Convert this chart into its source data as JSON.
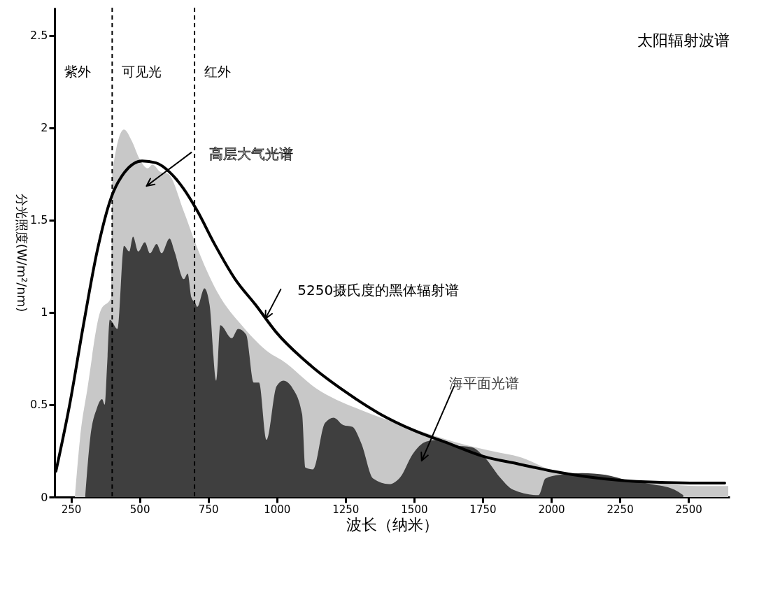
{
  "chart_data": {
    "type": "area",
    "title": "太阳辐射波谱",
    "xlabel": "波长（纳米）",
    "ylabel": "分光照度(W/m²/nm)",
    "xlim": [
      190,
      2650
    ],
    "xticks": [
      250,
      500,
      750,
      1000,
      1250,
      1500,
      1750,
      2000,
      2250,
      2500
    ],
    "ylim": [
      0,
      2.65
    ],
    "yticks": [
      0,
      0.5,
      1,
      1.5,
      2,
      2.5
    ],
    "grid": false,
    "ref_lines": [
      {
        "axis": "x",
        "value": 400,
        "line_style": "dashed",
        "color": "#000000"
      },
      {
        "axis": "x",
        "value": 700,
        "line_style": "dashed",
        "color": "#000000"
      }
    ],
    "annotations": [
      "紫外",
      "可见光",
      "红外"
    ],
    "series": [
      {
        "name": "高层大气光谱",
        "color": "#c8c8c8",
        "x": [
          264,
          283,
          310,
          358,
          396,
          401,
          443,
          471,
          500,
          529,
          547,
          576,
          604,
          660,
          707,
          783,
          878,
          974,
          1019,
          1142,
          1308,
          1476,
          1644,
          1811,
          1878,
          2030,
          2281,
          2532,
          2645
        ],
        "values": [
          0,
          0.32,
          0.59,
          1.01,
          1.08,
          1.76,
          1.99,
          1.93,
          1.83,
          1.78,
          1.8,
          1.76,
          1.75,
          1.55,
          1.36,
          1.11,
          0.92,
          0.78,
          0.74,
          0.59,
          0.47,
          0.38,
          0.3,
          0.24,
          0.22,
          0.13,
          0.09,
          0.06,
          0.06
        ]
      },
      {
        "name": "海平面光谱",
        "color": "#3f3f3f",
        "x": [
          302,
          320,
          344,
          363,
          373,
          382,
          391,
          420,
          443,
          462,
          476,
          495,
          519,
          538,
          562,
          580,
          609,
          627,
          661,
          675,
          689,
          703,
          710,
          736,
          755,
          779,
          794,
          836,
          859,
          888,
          916,
          935,
          963,
          999,
          1024,
          1057,
          1092,
          1104,
          1132,
          1175,
          1207,
          1242,
          1275,
          1308,
          1351,
          1409,
          1451,
          1494,
          1544,
          1594,
          1645,
          1710,
          1760,
          1811,
          1861,
          1954,
          1979,
          2029,
          2112,
          2198,
          2280,
          2363,
          2449,
          2481
        ],
        "values": [
          0.01,
          0.32,
          0.48,
          0.53,
          0.5,
          0.73,
          0.96,
          0.91,
          1.36,
          1.33,
          1.41,
          1.33,
          1.38,
          1.32,
          1.37,
          1.32,
          1.4,
          1.33,
          1.18,
          1.21,
          1.08,
          1.05,
          1.03,
          1.13,
          1.04,
          0.63,
          0.93,
          0.86,
          0.91,
          0.88,
          0.62,
          0.62,
          0.31,
          0.6,
          0.63,
          0.59,
          0.45,
          0.16,
          0.15,
          0.4,
          0.43,
          0.39,
          0.38,
          0.29,
          0.1,
          0.07,
          0.11,
          0.23,
          0.3,
          0.31,
          0.28,
          0.27,
          0.21,
          0.11,
          0.04,
          0.01,
          0.1,
          0.12,
          0.13,
          0.12,
          0.09,
          0.07,
          0.04,
          0.01
        ]
      },
      {
        "name": "5250摄氏度的黑体辐射谱",
        "type": "line",
        "color": "#000000",
        "x": [
          195,
          245,
          295,
          345,
          396,
          446,
          509,
          559,
          609,
          660,
          710,
          773,
          848,
          923,
          999,
          1125,
          1250,
          1376,
          1501,
          1627,
          1753,
          1878,
          2004,
          2130,
          2255,
          2381,
          2506,
          2632
        ],
        "values": [
          0.14,
          0.5,
          0.93,
          1.33,
          1.62,
          1.76,
          1.82,
          1.81,
          1.76,
          1.67,
          1.55,
          1.37,
          1.18,
          1.04,
          0.89,
          0.71,
          0.57,
          0.45,
          0.36,
          0.29,
          0.22,
          0.18,
          0.14,
          0.11,
          0.09,
          0.08,
          0.076,
          0.076
        ]
      }
    ]
  }
}
